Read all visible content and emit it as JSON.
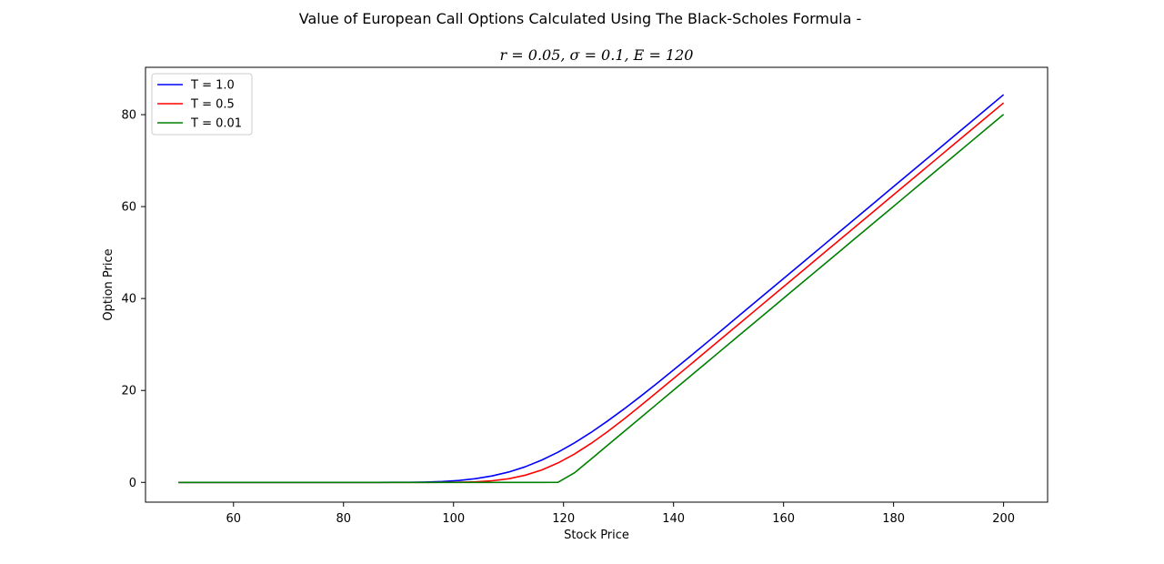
{
  "chart_data": {
    "type": "line",
    "title": "Value of European Call Options Calculated Using The Black-Scholes Formula -",
    "subtitle": "r = 0.05, σ = 0.1, E = 120",
    "xlabel": "Stock Price",
    "ylabel": "Option Price",
    "xlim": [
      44,
      208
    ],
    "ylim": [
      -4.3,
      90.3
    ],
    "xticks": [
      60,
      80,
      100,
      120,
      140,
      160,
      180,
      200
    ],
    "yticks": [
      0,
      20,
      40,
      60,
      80
    ],
    "grid": false,
    "legend_position": "upper-left",
    "x": [
      50,
      53,
      56,
      59,
      62,
      65,
      68,
      71,
      74,
      77,
      80,
      83,
      86,
      89,
      92,
      95,
      98,
      101,
      104,
      107,
      110,
      113,
      116,
      119,
      122,
      125,
      128,
      131,
      134,
      137,
      140,
      143,
      146,
      149,
      152,
      155,
      158,
      161,
      164,
      167,
      170,
      173,
      176,
      179,
      182,
      185,
      188,
      191,
      194,
      197,
      200
    ],
    "series": [
      {
        "name": "T = 1.0",
        "color": "#0000ff",
        "values": [
          0,
          0,
          0,
          0,
          0,
          0,
          0,
          0,
          0,
          0,
          0,
          0,
          0,
          0.01,
          0.03,
          0.08,
          0.2,
          0.42,
          0.81,
          1.4,
          2.24,
          3.38,
          4.83,
          6.57,
          8.6,
          10.87,
          13.35,
          15.97,
          18.72,
          21.56,
          24.46,
          27.4,
          30.37,
          33.36,
          36.36,
          39.36,
          42.36,
          45.35,
          48.35,
          51.35,
          54.35,
          57.35,
          60.35,
          63.35,
          66.35,
          69.35,
          72.35,
          75.35,
          78.35,
          81.35,
          84.35
        ]
      },
      {
        "name": "T = 0.5",
        "color": "#ff0000",
        "values": [
          0,
          0,
          0,
          0,
          0,
          0,
          0,
          0,
          0,
          0,
          0,
          0,
          0,
          0,
          0,
          0,
          0.01,
          0.04,
          0.13,
          0.35,
          0.79,
          1.55,
          2.68,
          4.23,
          6.18,
          8.47,
          11.04,
          13.79,
          16.67,
          19.62,
          22.59,
          25.57,
          28.57,
          31.57,
          34.57,
          37.57,
          40.57,
          43.57,
          46.57,
          49.57,
          52.57,
          55.57,
          58.57,
          61.57,
          64.57,
          67.57,
          70.57,
          73.57,
          76.57,
          79.57,
          82.57
        ]
      },
      {
        "name": "T = 0.01",
        "color": "#008000",
        "values": [
          0,
          0,
          0,
          0,
          0,
          0,
          0,
          0,
          0,
          0,
          0,
          0,
          0,
          0,
          0,
          0,
          0,
          0,
          0,
          0,
          0,
          0,
          0,
          0.02,
          2.09,
          5.06,
          8.06,
          11.06,
          14.06,
          17.06,
          20.06,
          23.06,
          26.06,
          29.06,
          32.06,
          35.06,
          38.06,
          41.06,
          44.06,
          47.06,
          50.06,
          53.06,
          56.06,
          59.06,
          62.06,
          65.06,
          68.06,
          71.06,
          74.06,
          77.06,
          80.06
        ]
      }
    ]
  }
}
